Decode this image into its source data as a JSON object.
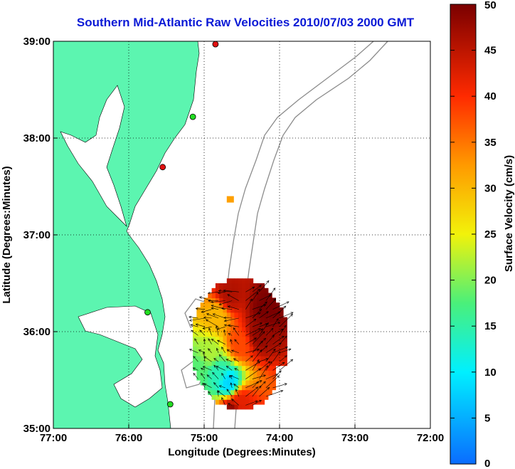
{
  "chart_data": {
    "type": "heatmap",
    "title": "Southern Mid-Atlantic Raw Velocities 2010/07/03 2000 GMT",
    "xlabel": "Longitude (Degrees:Minutes)",
    "ylabel": "Latitude (Degrees:Minutes)",
    "xlim": [
      -77,
      -72
    ],
    "ylim": [
      35,
      39
    ],
    "x_ticks": [
      {
        "value": -77,
        "label": "77:00"
      },
      {
        "value": -76,
        "label": "76:00"
      },
      {
        "value": -75,
        "label": "75:00"
      },
      {
        "value": -74,
        "label": "74:00"
      },
      {
        "value": -73,
        "label": "73:00"
      },
      {
        "value": -72,
        "label": "72:00"
      }
    ],
    "y_ticks": [
      {
        "value": 35,
        "label": "35:00"
      },
      {
        "value": 36,
        "label": "36:00"
      },
      {
        "value": 37,
        "label": "37:00"
      },
      {
        "value": 38,
        "label": "38:00"
      },
      {
        "value": 39,
        "label": "39:00"
      }
    ],
    "grid": true,
    "colorbar": {
      "label": "Surface Velocity (cm/s)",
      "range": [
        0,
        50
      ],
      "ticks": [
        0,
        5,
        10,
        15,
        20,
        25,
        30,
        35,
        40,
        45,
        50
      ]
    },
    "velocity_regions": [
      {
        "lon": -74.3,
        "lat": 35.95,
        "speed": 48
      },
      {
        "lon": -74.2,
        "lat": 36.2,
        "speed": 50
      },
      {
        "lon": -74.55,
        "lat": 35.85,
        "speed": 38
      },
      {
        "lon": -74.7,
        "lat": 36.35,
        "speed": 46
      },
      {
        "lon": -74.85,
        "lat": 36.15,
        "speed": 30
      },
      {
        "lon": -74.95,
        "lat": 35.75,
        "speed": 22
      },
      {
        "lon": -74.85,
        "lat": 35.55,
        "speed": 14
      },
      {
        "lon": -75.1,
        "lat": 35.6,
        "speed": 18
      },
      {
        "lon": -74.7,
        "lat": 35.45,
        "speed": 8
      },
      {
        "lon": -74.55,
        "lat": 35.25,
        "speed": 42
      },
      {
        "lon": -74.65,
        "lat": 35.15,
        "speed": 49
      },
      {
        "lon": -74.7,
        "lat": 37.35,
        "speed": 32
      }
    ],
    "stations": [
      {
        "lon": -74.85,
        "lat": 38.97,
        "color": "#e01010"
      },
      {
        "lon": -75.15,
        "lat": 38.22,
        "color": "#22dd22"
      },
      {
        "lon": -75.55,
        "lat": 37.7,
        "color": "#e01010"
      },
      {
        "lon": -75.75,
        "lat": 36.2,
        "color": "#22dd22"
      },
      {
        "lon": -75.45,
        "lat": 35.25,
        "color": "#22dd22"
      }
    ],
    "colors": {
      "land": "#5cf5b0",
      "contour": "#8c8c8c",
      "grid": "#000000",
      "title": "#0b1ad6"
    }
  }
}
